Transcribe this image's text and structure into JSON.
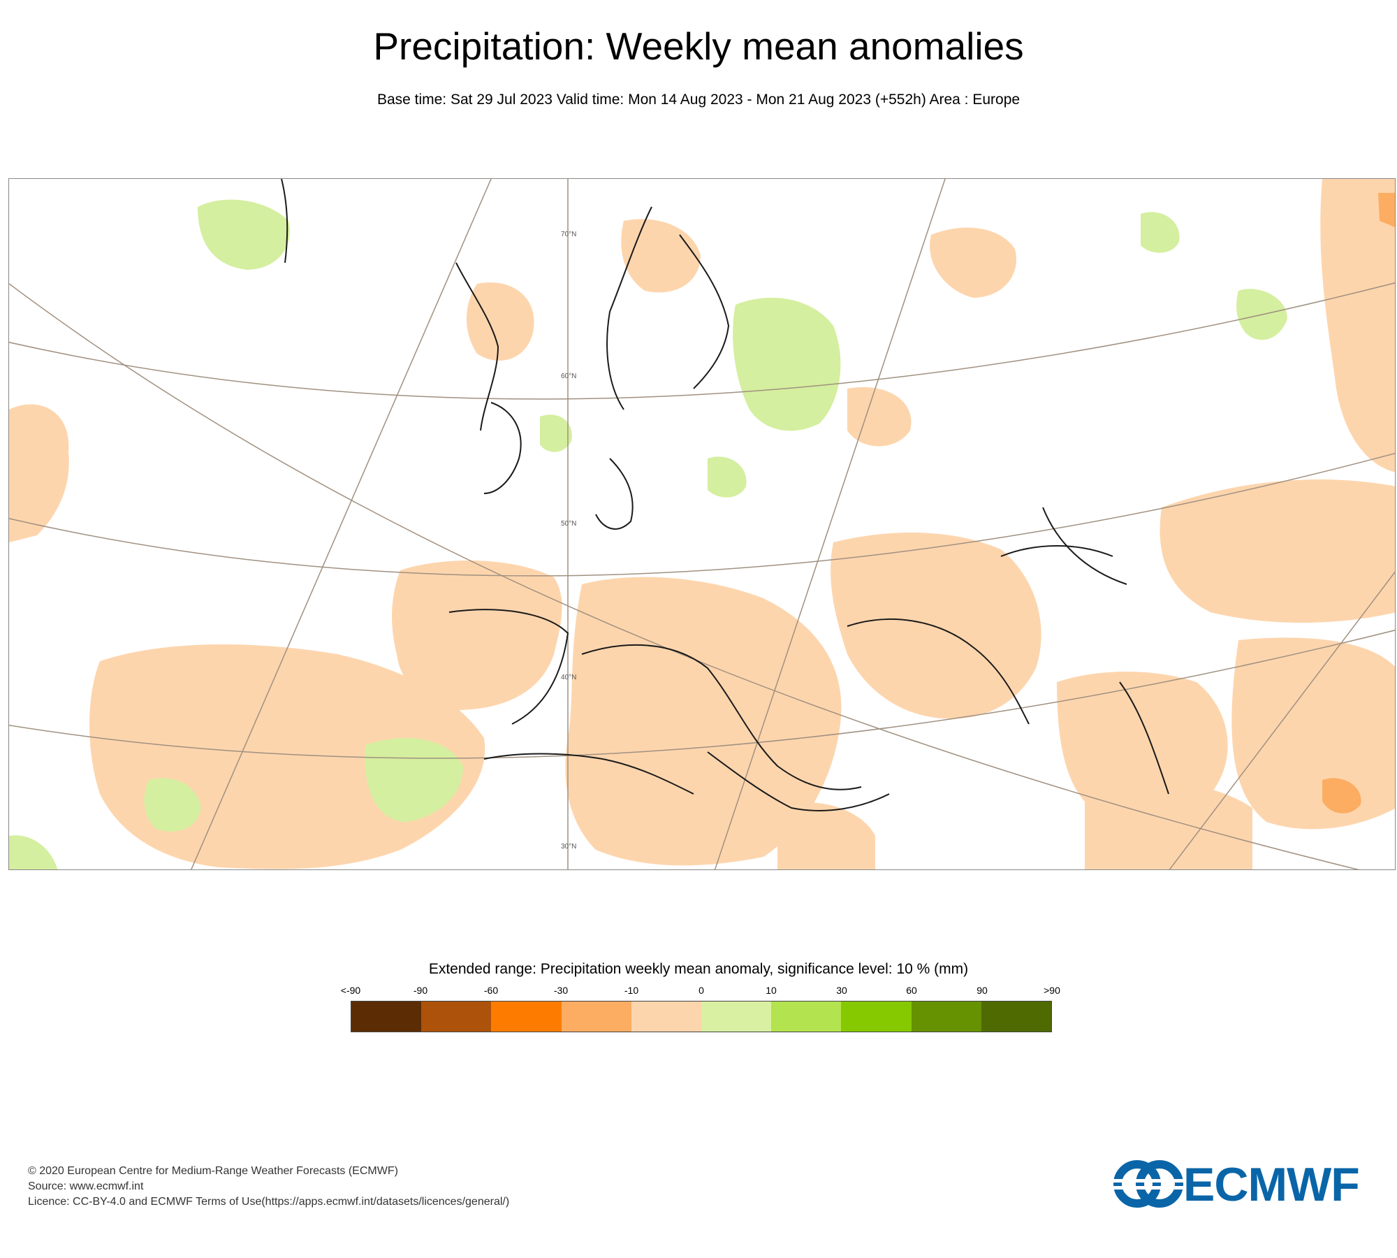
{
  "header": {
    "title": "Precipitation: Weekly mean anomalies",
    "subtitle": "Base time: Sat 29 Jul 2023 Valid time: Mon 14 Aug 2023 - Mon 21 Aug 2023 (+552h) Area : Europe"
  },
  "map": {
    "latitude_labels": [
      "70°N",
      "60°N",
      "50°N",
      "40°N",
      "30°N"
    ],
    "colors": {
      "land_outline": "#1a1a1a",
      "graticule": "#a09080",
      "dry_anomaly": "#fdd5ad",
      "dry_strong": "#fcad62",
      "wet_anomaly": "#d4ef9f"
    }
  },
  "legend": {
    "title": "Extended range: Precipitation weekly mean anomaly, significance level: 10 % (mm)",
    "ticks": [
      "<-90",
      "-90",
      "-60",
      "-30",
      "-10",
      "0",
      "10",
      "30",
      "60",
      "90",
      ">90"
    ],
    "colors": [
      "#5c2c05",
      "#ad520a",
      "#fd7c00",
      "#fcad62",
      "#fdd5ad",
      "#d9f0a3",
      "#b3e34f",
      "#86c900",
      "#669100",
      "#4e6a00"
    ]
  },
  "footer": {
    "line1": "© 2020 European Centre for Medium-Range Weather Forecasts (ECMWF)",
    "line2": "Source: www.ecmwf.int",
    "line3": "Licence: CC-BY-4.0 and ECMWF Terms of Use(https://apps.ecmwf.int/datasets/licences/general/)"
  },
  "logo": {
    "text": "ECMWF",
    "color": "#0a65a8"
  }
}
